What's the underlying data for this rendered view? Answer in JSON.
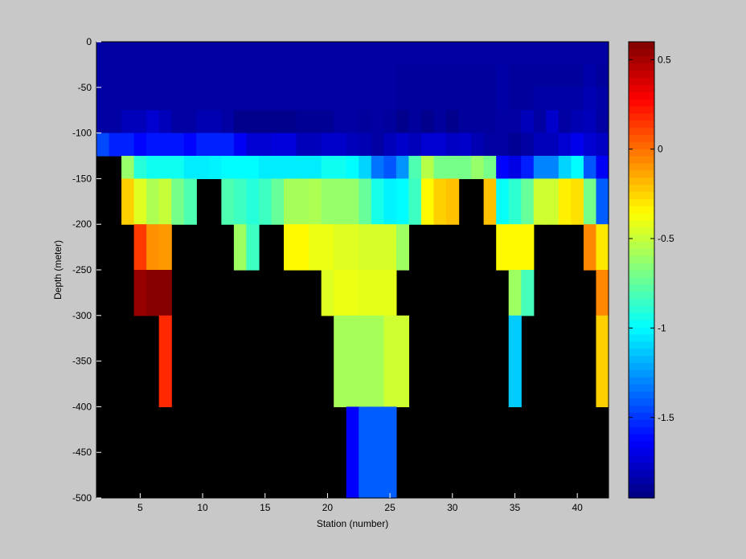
{
  "chart_data": {
    "type": "heatmap",
    "title": "",
    "xlabel": "Station (number)",
    "ylabel": "Depth (meter)",
    "xlim": [
      1.5,
      42.5
    ],
    "ylim": [
      -500,
      0
    ],
    "xticks": [
      5,
      10,
      15,
      20,
      25,
      30,
      35,
      40
    ],
    "yticks": [
      0,
      -50,
      -100,
      -150,
      -200,
      -250,
      -300,
      -350,
      -400,
      -450,
      -500
    ],
    "background": "#000000",
    "colorbar": {
      "range": [
        -1.95,
        0.6
      ],
      "ticks": [
        0.5,
        0,
        -0.5,
        -1,
        -1.5
      ],
      "colormap": "jet-like"
    },
    "stations": [
      2,
      3,
      4,
      5,
      6,
      7,
      8,
      9,
      10,
      11,
      12,
      13,
      14,
      15,
      16,
      17,
      18,
      19,
      20,
      21,
      22,
      23,
      24,
      25,
      26,
      27,
      28,
      29,
      30,
      31,
      32,
      33,
      34,
      35,
      36,
      37,
      38,
      39,
      40,
      41,
      42
    ],
    "depth_levels": [
      [
        0,
        -25
      ],
      [
        -25,
        -50
      ],
      [
        -50,
        -75
      ],
      [
        -75,
        -100
      ],
      [
        -100,
        -125
      ],
      [
        -125,
        -150
      ],
      [
        -150,
        -200
      ],
      [
        -200,
        -250
      ],
      [
        -250,
        -300
      ],
      [
        -300,
        -400
      ],
      [
        -400,
        -500
      ]
    ],
    "values": [
      [
        -1.86,
        -1.86,
        -1.86,
        -1.86,
        -1.86,
        -1.86,
        -1.86,
        -1.86,
        -1.86,
        -1.86,
        -1.86,
        -1.86,
        -1.86,
        -1.86,
        -1.86,
        -1.86,
        -1.86,
        -1.86,
        -1.86,
        -1.86,
        -1.86,
        -1.86,
        -1.86,
        -1.86,
        -1.86,
        -1.86,
        -1.86,
        -1.86,
        -1.86,
        -1.86,
        -1.86,
        -1.86,
        -1.86,
        -1.86,
        -1.86,
        -1.86,
        -1.86,
        -1.86,
        -1.86,
        -1.86,
        -1.86
      ],
      [
        -1.86,
        -1.86,
        -1.86,
        -1.86,
        -1.86,
        -1.86,
        -1.86,
        -1.86,
        -1.86,
        -1.86,
        -1.86,
        -1.86,
        -1.86,
        -1.86,
        -1.86,
        -1.86,
        -1.86,
        -1.86,
        -1.86,
        -1.86,
        -1.86,
        -1.86,
        -1.86,
        -1.86,
        -1.88,
        -1.88,
        -1.88,
        -1.88,
        -1.88,
        -1.88,
        -1.88,
        -1.88,
        -1.85,
        -1.88,
        -1.88,
        -1.88,
        -1.88,
        -1.88,
        -1.88,
        -1.84,
        -1.88
      ],
      [
        -1.86,
        -1.86,
        -1.86,
        -1.86,
        -1.86,
        -1.86,
        -1.86,
        -1.86,
        -1.86,
        -1.86,
        -1.86,
        -1.86,
        -1.86,
        -1.86,
        -1.86,
        -1.86,
        -1.86,
        -1.86,
        -1.86,
        -1.86,
        -1.86,
        -1.86,
        -1.86,
        -1.86,
        -1.88,
        -1.88,
        -1.88,
        -1.88,
        -1.88,
        -1.88,
        -1.88,
        -1.88,
        -1.85,
        -1.88,
        -1.88,
        -1.85,
        -1.85,
        -1.85,
        -1.85,
        -1.82,
        -1.85
      ],
      [
        -1.86,
        -1.86,
        -1.8,
        -1.8,
        -1.75,
        -1.8,
        -1.86,
        -1.86,
        -1.82,
        -1.82,
        -1.86,
        -1.92,
        -1.92,
        -1.92,
        -1.92,
        -1.92,
        -1.9,
        -1.9,
        -1.9,
        -1.86,
        -1.86,
        -1.88,
        -1.86,
        -1.88,
        -1.92,
        -1.88,
        -1.92,
        -1.88,
        -1.92,
        -1.88,
        -1.88,
        -1.88,
        -1.86,
        -1.86,
        -1.8,
        -1.86,
        -1.76,
        -1.86,
        -1.82,
        -1.8,
        -1.86
      ],
      [
        -1.45,
        -1.55,
        -1.55,
        -1.62,
        -1.58,
        -1.58,
        -1.58,
        -1.62,
        -1.55,
        -1.55,
        -1.55,
        -1.66,
        -1.74,
        -1.74,
        -1.72,
        -1.72,
        -1.8,
        -1.8,
        -1.76,
        -1.76,
        -1.8,
        -1.82,
        -1.86,
        -1.8,
        -1.76,
        -1.8,
        -1.74,
        -1.74,
        -1.78,
        -1.76,
        -1.82,
        -1.86,
        -1.86,
        -1.9,
        -1.86,
        -1.8,
        -1.8,
        -1.74,
        -1.68,
        -1.74,
        -1.78
      ],
      [
        null,
        null,
        -0.62,
        -0.9,
        -0.96,
        -0.96,
        -0.96,
        -1.04,
        -1.04,
        -1.02,
        -1.0,
        -1.0,
        -1.0,
        -1.04,
        -1.04,
        -1.04,
        -1.04,
        -1.04,
        -0.96,
        -0.96,
        -1.0,
        -1.1,
        -1.34,
        -1.42,
        -1.26,
        -0.8,
        -0.54,
        -0.7,
        -0.7,
        -0.7,
        -0.62,
        -0.7,
        -1.62,
        -1.7,
        -1.56,
        -1.3,
        -1.3,
        -1.1,
        -1.0,
        -1.42,
        -1.66
      ],
      [
        null,
        null,
        -0.24,
        -0.44,
        -0.56,
        -0.5,
        -0.7,
        -0.8,
        null,
        null,
        -0.8,
        -0.84,
        -0.9,
        -0.84,
        -0.74,
        -0.58,
        -0.58,
        -0.56,
        -0.62,
        -0.62,
        -0.62,
        -0.74,
        -0.94,
        -1.02,
        -1.0,
        -0.84,
        -0.34,
        -0.24,
        -0.2,
        null,
        null,
        -0.2,
        -0.98,
        -0.88,
        -0.74,
        -0.48,
        -0.48,
        -0.32,
        -0.28,
        -0.7,
        -1.4
      ],
      [
        null,
        null,
        null,
        0.14,
        -0.08,
        -0.1,
        null,
        null,
        null,
        null,
        null,
        -0.6,
        -0.84,
        null,
        null,
        -0.34,
        -0.34,
        -0.4,
        -0.4,
        -0.44,
        -0.44,
        -0.46,
        -0.46,
        -0.46,
        -0.6,
        null,
        null,
        null,
        null,
        null,
        null,
        null,
        -0.34,
        -0.34,
        -0.34,
        null,
        null,
        null,
        null,
        -0.06,
        -0.3
      ],
      [
        null,
        null,
        null,
        0.54,
        0.58,
        0.58,
        null,
        null,
        null,
        null,
        null,
        null,
        null,
        null,
        null,
        null,
        null,
        null,
        -0.44,
        -0.4,
        -0.4,
        -0.42,
        -0.42,
        -0.42,
        null,
        null,
        null,
        null,
        null,
        null,
        null,
        null,
        null,
        -0.6,
        -0.82,
        null,
        null,
        null,
        null,
        null,
        -0.06
      ],
      [
        null,
        null,
        null,
        null,
        null,
        0.18,
        null,
        null,
        null,
        null,
        null,
        null,
        null,
        null,
        null,
        null,
        null,
        null,
        null,
        -0.58,
        -0.58,
        -0.58,
        -0.58,
        -0.48,
        -0.48,
        null,
        null,
        null,
        null,
        null,
        null,
        null,
        null,
        -1.12,
        null,
        null,
        null,
        null,
        null,
        null,
        -0.24
      ],
      [
        null,
        null,
        null,
        null,
        null,
        null,
        null,
        null,
        null,
        null,
        null,
        null,
        null,
        null,
        null,
        null,
        null,
        null,
        null,
        null,
        -1.64,
        -1.4,
        -1.4,
        -1.4,
        null,
        null,
        null,
        null,
        null,
        null,
        null,
        null,
        null,
        null,
        null,
        null,
        null,
        null,
        null,
        null,
        null
      ]
    ]
  }
}
